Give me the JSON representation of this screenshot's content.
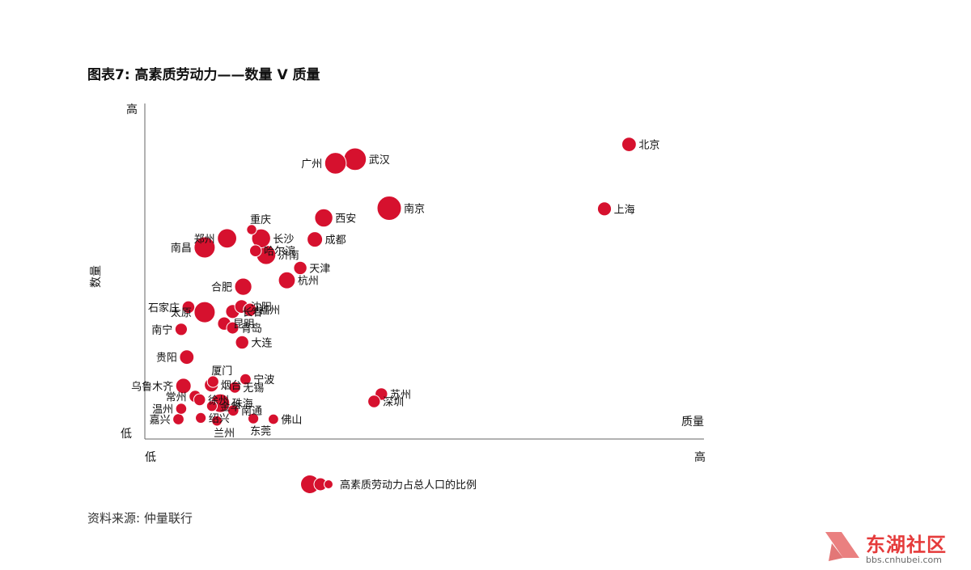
{
  "title": "图表7:  高素质劳动力——数量 V 质量",
  "source": "资料来源:  仲量联行",
  "watermark": {
    "text": "东湖社区",
    "url": "bbs.cnhubei.com"
  },
  "colors": {
    "bubble": "#d6112e",
    "bubble_edge": "#ffffff",
    "axis": "#666666"
  },
  "chart_data": {
    "type": "scatter",
    "title": "高素质劳动力——数量 V 质量",
    "xlabel": "质量",
    "ylabel": "数量",
    "x_ticks": [
      "低",
      "高"
    ],
    "y_ticks": [
      "低",
      "高"
    ],
    "xlim": [
      0,
      100
    ],
    "ylim": [
      0,
      100
    ],
    "size_legend": "高素质劳动力占总人口的比例",
    "legend_position": "bottom",
    "points": [
      {
        "name": "北京",
        "x": 86.6,
        "y": 87.8,
        "size": 0.45
      },
      {
        "name": "上海",
        "x": 82.2,
        "y": 68.6,
        "size": 0.42
      },
      {
        "name": "广州",
        "x": 34.1,
        "y": 82.2,
        "size": 0.85
      },
      {
        "name": "武汉",
        "x": 37.6,
        "y": 83.4,
        "size": 0.9
      },
      {
        "name": "南京",
        "x": 43.7,
        "y": 68.8,
        "size": 1.0
      },
      {
        "name": "西安",
        "x": 32.0,
        "y": 65.9,
        "size": 0.65
      },
      {
        "name": "成都",
        "x": 30.4,
        "y": 59.5,
        "size": 0.5
      },
      {
        "name": "重庆",
        "x": 19.1,
        "y": 62.4,
        "size": 0.2
      },
      {
        "name": "郑州",
        "x": 14.7,
        "y": 59.8,
        "size": 0.72
      },
      {
        "name": "长沙",
        "x": 20.8,
        "y": 59.8,
        "size": 0.7
      },
      {
        "name": "南昌",
        "x": 10.7,
        "y": 57.1,
        "size": 0.82
      },
      {
        "name": "哈尔滨",
        "x": 19.8,
        "y": 56.1,
        "size": 0.3
      },
      {
        "name": "济南",
        "x": 21.7,
        "y": 54.9,
        "size": 0.72
      },
      {
        "name": "天津",
        "x": 27.8,
        "y": 51.0,
        "size": 0.38
      },
      {
        "name": "杭州",
        "x": 25.4,
        "y": 47.3,
        "size": 0.58
      },
      {
        "name": "合肥",
        "x": 17.6,
        "y": 45.4,
        "size": 0.6
      },
      {
        "name": "沈阳",
        "x": 17.3,
        "y": 39.5,
        "size": 0.4
      },
      {
        "name": "石家庄",
        "x": 7.8,
        "y": 39.3,
        "size": 0.35
      },
      {
        "name": "太原",
        "x": 10.7,
        "y": 37.8,
        "size": 0.82
      },
      {
        "name": "长春",
        "x": 15.7,
        "y": 38.0,
        "size": 0.42
      },
      {
        "name": "福州",
        "x": 18.8,
        "y": 38.5,
        "size": 0.38
      },
      {
        "name": "昆明",
        "x": 14.2,
        "y": 34.4,
        "size": 0.38
      },
      {
        "name": "青岛",
        "x": 15.7,
        "y": 33.1,
        "size": 0.32
      },
      {
        "name": "南宁",
        "x": 6.5,
        "y": 32.7,
        "size": 0.33
      },
      {
        "name": "大连",
        "x": 17.4,
        "y": 28.8,
        "size": 0.38
      },
      {
        "name": "贵阳",
        "x": 7.5,
        "y": 24.4,
        "size": 0.45
      },
      {
        "name": "厦门",
        "x": 12.2,
        "y": 17.1,
        "size": 0.28
      },
      {
        "name": "宁波",
        "x": 18.0,
        "y": 17.8,
        "size": 0.26
      },
      {
        "name": "乌鲁木齐",
        "x": 6.9,
        "y": 15.8,
        "size": 0.5
      },
      {
        "name": "烟台",
        "x": 11.9,
        "y": 16.1,
        "size": 0.42
      },
      {
        "name": "无锡",
        "x": 16.1,
        "y": 15.4,
        "size": 0.28
      },
      {
        "name": "常州",
        "x": 9.0,
        "y": 12.7,
        "size": 0.32
      },
      {
        "name": "徐州",
        "x": 9.8,
        "y": 11.7,
        "size": 0.3
      },
      {
        "name": "珠海",
        "x": 13.5,
        "y": 10.7,
        "size": 0.68
      },
      {
        "name": "金华",
        "x": 12.0,
        "y": 9.8,
        "size": 0.24
      },
      {
        "name": "温州",
        "x": 6.5,
        "y": 9.0,
        "size": 0.25
      },
      {
        "name": "南通",
        "x": 15.8,
        "y": 8.5,
        "size": 0.26
      },
      {
        "name": "绍兴",
        "x": 10.0,
        "y": 6.3,
        "size": 0.24
      },
      {
        "name": "嘉兴",
        "x": 6.0,
        "y": 5.9,
        "size": 0.26
      },
      {
        "name": "佛山",
        "x": 23.0,
        "y": 5.9,
        "size": 0.22
      },
      {
        "name": "东莞",
        "x": 19.4,
        "y": 6.1,
        "size": 0.24
      },
      {
        "name": "兰州",
        "x": 12.9,
        "y": 5.4,
        "size": 0.22
      },
      {
        "name": "苏州",
        "x": 42.3,
        "y": 13.4,
        "size": 0.34
      },
      {
        "name": "深圳",
        "x": 41.0,
        "y": 11.2,
        "size": 0.34
      }
    ]
  }
}
